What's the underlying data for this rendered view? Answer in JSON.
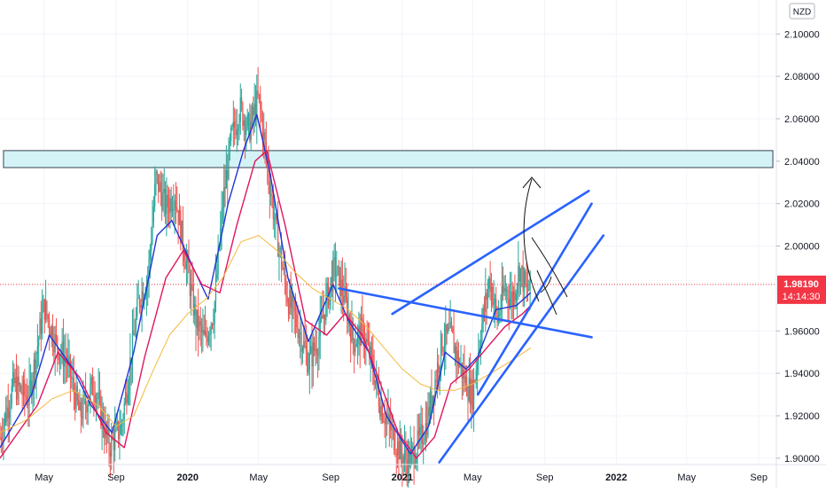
{
  "chart_data": {
    "type": "candlestick",
    "currency_label": "NZD",
    "price_badge": {
      "value": "1.98190",
      "countdown": "14:14:30",
      "color": "#f23645"
    },
    "current_price": 1.9819,
    "yaxis": {
      "range": [
        1.897,
        2.116
      ],
      "ticks": [
        {
          "value": 2.1,
          "label": "2.10000"
        },
        {
          "value": 2.08,
          "label": "2.08000"
        },
        {
          "value": 2.06,
          "label": "2.06000"
        },
        {
          "value": 2.04,
          "label": "2.04000"
        },
        {
          "value": 2.02,
          "label": "2.02000"
        },
        {
          "value": 2.0,
          "label": "2.00000"
        },
        {
          "value": 1.96,
          "label": "1.96000"
        },
        {
          "value": 1.94,
          "label": "1.94000"
        },
        {
          "value": 1.92,
          "label": "1.92000"
        },
        {
          "value": 1.9,
          "label": "1.90000"
        }
      ]
    },
    "xaxis": {
      "range": [
        "2019-02-15",
        "2022-10-01"
      ],
      "ticks": [
        {
          "date": "2019-05-01",
          "label": "May",
          "bold": false
        },
        {
          "date": "2019-09-01",
          "label": "Sep",
          "bold": false
        },
        {
          "date": "2020-01-01",
          "label": "2020",
          "bold": true
        },
        {
          "date": "2020-05-01",
          "label": "May",
          "bold": false
        },
        {
          "date": "2020-09-01",
          "label": "Sep",
          "bold": false
        },
        {
          "date": "2021-01-01",
          "label": "2021",
          "bold": true
        },
        {
          "date": "2021-05-01",
          "label": "May",
          "bold": false
        },
        {
          "date": "2021-09-01",
          "label": "Sep",
          "bold": false
        },
        {
          "date": "2022-01-01",
          "label": "2022",
          "bold": true
        },
        {
          "date": "2022-05-01",
          "label": "May",
          "bold": false
        },
        {
          "date": "2022-09-01",
          "label": "Sep",
          "bold": false
        }
      ]
    },
    "colors": {
      "up": "#26a69a",
      "down": "#ef5350",
      "ma_fast": "#2134d6",
      "ma_mid": "#e0155f",
      "ma_slow": "#f5b93b",
      "trendline": "#2962ff",
      "zone_fill": "#d3f3f7"
    },
    "price_path": [
      [
        "2019-02-15",
        1.91
      ],
      [
        "2019-03-10",
        1.935
      ],
      [
        "2019-04-05",
        1.928
      ],
      [
        "2019-05-01",
        1.972
      ],
      [
        "2019-05-20",
        1.955
      ],
      [
        "2019-06-10",
        1.945
      ],
      [
        "2019-07-01",
        1.92
      ],
      [
        "2019-07-25",
        1.935
      ],
      [
        "2019-08-20",
        1.905
      ],
      [
        "2019-09-10",
        1.915
      ],
      [
        "2019-09-25",
        1.945
      ],
      [
        "2019-10-10",
        1.975
      ],
      [
        "2019-10-25",
        1.985
      ],
      [
        "2019-11-08",
        2.032
      ],
      [
        "2019-11-25",
        2.018
      ],
      [
        "2019-12-10",
        2.025
      ],
      [
        "2019-12-28",
        1.995
      ],
      [
        "2020-01-15",
        1.965
      ],
      [
        "2020-01-30",
        1.955
      ],
      [
        "2020-02-15",
        1.97
      ],
      [
        "2020-03-01",
        2.02
      ],
      [
        "2020-03-15",
        2.05
      ],
      [
        "2020-03-30",
        2.065
      ],
      [
        "2020-04-15",
        2.055
      ],
      [
        "2020-05-01",
        2.07
      ],
      [
        "2020-05-15",
        2.04
      ],
      [
        "2020-06-01",
        2.005
      ],
      [
        "2020-06-20",
        1.975
      ],
      [
        "2020-07-10",
        1.96
      ],
      [
        "2020-07-25",
        1.945
      ],
      [
        "2020-08-10",
        1.955
      ],
      [
        "2020-08-25",
        1.975
      ],
      [
        "2020-09-08",
        1.99
      ],
      [
        "2020-09-25",
        1.975
      ],
      [
        "2020-10-10",
        1.955
      ],
      [
        "2020-10-25",
        1.96
      ],
      [
        "2020-11-10",
        1.945
      ],
      [
        "2020-11-25",
        1.925
      ],
      [
        "2020-12-10",
        1.915
      ],
      [
        "2020-12-25",
        1.905
      ],
      [
        "2021-01-10",
        1.898
      ],
      [
        "2021-01-25",
        1.905
      ],
      [
        "2021-02-10",
        1.915
      ],
      [
        "2021-02-25",
        1.935
      ],
      [
        "2021-03-10",
        1.955
      ],
      [
        "2021-03-25",
        1.958
      ],
      [
        "2021-04-08",
        1.945
      ],
      [
        "2021-04-20",
        1.935
      ],
      [
        "2021-05-01",
        1.93
      ],
      [
        "2021-05-15",
        1.96
      ],
      [
        "2021-05-30",
        1.985
      ],
      [
        "2021-06-12",
        1.965
      ],
      [
        "2021-06-25",
        1.98
      ],
      [
        "2021-07-08",
        1.975
      ],
      [
        "2021-07-20",
        1.99
      ],
      [
        "2021-08-01",
        1.978
      ],
      [
        "2021-08-08",
        1.9819
      ]
    ],
    "moving_averages": [
      {
        "name": "ma_fast",
        "color": "#2134d6",
        "points": [
          [
            "2019-02-15",
            1.905
          ],
          [
            "2019-04-10",
            1.93
          ],
          [
            "2019-05-10",
            1.958
          ],
          [
            "2019-06-20",
            1.942
          ],
          [
            "2019-07-20",
            1.925
          ],
          [
            "2019-08-25",
            1.912
          ],
          [
            "2019-10-01",
            1.95
          ],
          [
            "2019-11-10",
            2.005
          ],
          [
            "2019-12-05",
            2.012
          ],
          [
            "2020-01-10",
            1.99
          ],
          [
            "2020-02-05",
            1.975
          ],
          [
            "2020-03-10",
            2.02
          ],
          [
            "2020-04-05",
            2.045
          ],
          [
            "2020-04-28",
            2.062
          ],
          [
            "2020-05-20",
            2.035
          ],
          [
            "2020-06-20",
            1.985
          ],
          [
            "2020-07-25",
            1.955
          ],
          [
            "2020-09-05",
            1.982
          ],
          [
            "2020-10-01",
            1.965
          ],
          [
            "2020-11-05",
            1.95
          ],
          [
            "2020-12-05",
            1.92
          ],
          [
            "2021-01-15",
            1.902
          ],
          [
            "2021-02-15",
            1.915
          ],
          [
            "2021-03-15",
            1.95
          ],
          [
            "2021-04-20",
            1.942
          ],
          [
            "2021-05-10",
            1.948
          ],
          [
            "2021-06-10",
            1.97
          ],
          [
            "2021-07-15",
            1.972
          ],
          [
            "2021-08-08",
            1.978
          ]
        ]
      },
      {
        "name": "ma_mid",
        "color": "#e0155f",
        "points": [
          [
            "2019-02-15",
            1.9
          ],
          [
            "2019-04-20",
            1.925
          ],
          [
            "2019-05-25",
            1.95
          ],
          [
            "2019-07-01",
            1.938
          ],
          [
            "2019-08-15",
            1.912
          ],
          [
            "2019-09-15",
            1.905
          ],
          [
            "2019-10-20",
            1.948
          ],
          [
            "2019-11-25",
            1.985
          ],
          [
            "2019-12-25",
            1.998
          ],
          [
            "2020-01-25",
            1.982
          ],
          [
            "2020-02-25",
            1.978
          ],
          [
            "2020-03-25",
            2.01
          ],
          [
            "2020-04-25",
            2.04
          ],
          [
            "2020-05-15",
            2.045
          ],
          [
            "2020-06-15",
            2.01
          ],
          [
            "2020-07-20",
            1.965
          ],
          [
            "2020-08-25",
            1.958
          ],
          [
            "2020-09-25",
            1.968
          ],
          [
            "2020-10-25",
            1.958
          ],
          [
            "2020-11-25",
            1.935
          ],
          [
            "2020-12-25",
            1.912
          ],
          [
            "2021-01-25",
            1.9
          ],
          [
            "2021-02-25",
            1.91
          ],
          [
            "2021-03-25",
            1.935
          ],
          [
            "2021-04-25",
            1.942
          ],
          [
            "2021-05-25",
            1.952
          ],
          [
            "2021-06-25",
            1.962
          ],
          [
            "2021-07-25",
            1.968
          ],
          [
            "2021-08-08",
            1.972
          ]
        ]
      },
      {
        "name": "ma_slow",
        "color": "#f5b93b",
        "points": [
          [
            "2019-02-15",
            1.912
          ],
          [
            "2019-04-01",
            1.918
          ],
          [
            "2019-05-15",
            1.928
          ],
          [
            "2019-06-20",
            1.932
          ],
          [
            "2019-08-01",
            1.925
          ],
          [
            "2019-09-01",
            1.915
          ],
          [
            "2019-10-01",
            1.92
          ],
          [
            "2019-11-01",
            1.94
          ],
          [
            "2019-12-01",
            1.958
          ],
          [
            "2020-01-01",
            1.968
          ],
          [
            "2020-02-01",
            1.975
          ],
          [
            "2020-03-01",
            1.985
          ],
          [
            "2020-04-01",
            2.002
          ],
          [
            "2020-05-01",
            2.005
          ],
          [
            "2020-06-01",
            1.998
          ],
          [
            "2020-07-01",
            1.988
          ],
          [
            "2020-08-01",
            1.98
          ],
          [
            "2020-09-01",
            1.975
          ],
          [
            "2020-10-01",
            1.97
          ],
          [
            "2020-11-01",
            1.962
          ],
          [
            "2020-12-01",
            1.952
          ],
          [
            "2021-01-01",
            1.942
          ],
          [
            "2021-02-01",
            1.935
          ],
          [
            "2021-03-01",
            1.932
          ],
          [
            "2021-04-01",
            1.932
          ],
          [
            "2021-05-01",
            1.935
          ],
          [
            "2021-06-01",
            1.94
          ],
          [
            "2021-07-01",
            1.945
          ],
          [
            "2021-08-08",
            1.952
          ]
        ]
      }
    ],
    "annotations": {
      "resistance_zone": {
        "y_range": [
          2.037,
          2.045
        ],
        "x_range": [
          "2019-02-21",
          "2022-09-25"
        ]
      },
      "trendlines": [
        {
          "name": "downward-trendline",
          "from": [
            "2020-09-15",
            1.98
          ],
          "to": [
            "2021-11-20",
            1.957
          ]
        },
        {
          "name": "upper-channel-line",
          "from": [
            "2020-12-15",
            1.968
          ],
          "to": [
            "2021-11-15",
            2.026
          ]
        },
        {
          "name": "steep-support-line",
          "from": [
            "2021-05-10",
            1.93
          ],
          "to": [
            "2021-11-20",
            2.02
          ]
        },
        {
          "name": "lower-channel-line",
          "from": [
            "2021-03-05",
            1.898
          ],
          "to": [
            "2021-12-10",
            2.005
          ]
        }
      ]
    }
  }
}
